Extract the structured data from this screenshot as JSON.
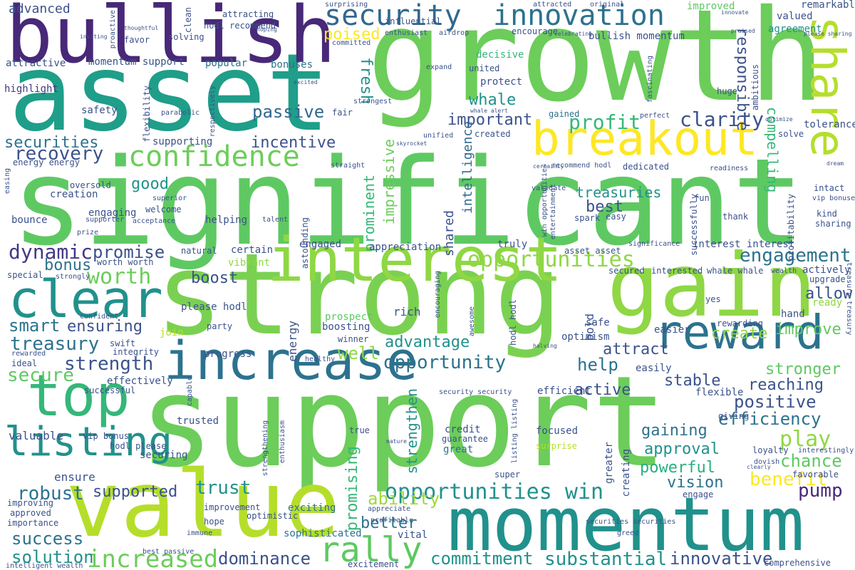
{
  "palette": {
    "background": "#ffffff",
    "c1": "#440154",
    "c2": "#3b528b",
    "c3": "#2c728e",
    "c4": "#21918c",
    "c5": "#28ae80",
    "c6": "#5ec962",
    "c7": "#8fd744",
    "c8": "#b5de2b",
    "c9": "#fde725"
  },
  "words": [
    {
      "text": "growth",
      "color": "#6ccd5a"
    },
    {
      "text": "asset",
      "color": "#1f9e89"
    },
    {
      "text": "significant",
      "color": "#5ec962"
    },
    {
      "text": "support",
      "color": "#6ccd5a"
    },
    {
      "text": "strong",
      "color": "#7ad151"
    },
    {
      "text": "bullish",
      "color": "#482878"
    },
    {
      "text": "value",
      "color": "#b5de2b"
    },
    {
      "text": "momentum",
      "color": "#21918c"
    },
    {
      "text": "gain",
      "color": "#8fd744"
    },
    {
      "text": "increase",
      "color": "#2c728e"
    },
    {
      "text": "interest",
      "color": "#8fd744"
    },
    {
      "text": "top",
      "color": "#35b779"
    },
    {
      "text": "reward",
      "color": "#2c728e"
    },
    {
      "text": "clear",
      "color": "#21918c"
    },
    {
      "text": "breakout",
      "color": "#fde725"
    },
    {
      "text": "share",
      "color": "#b5de2b"
    },
    {
      "text": "security",
      "color": "#31688e"
    },
    {
      "text": "innovation",
      "color": "#2c728e"
    },
    {
      "text": "listing",
      "color": "#21918c"
    },
    {
      "text": "confidence",
      "color": "#6ccd5a"
    },
    {
      "text": "rally",
      "color": "#5ec962"
    },
    {
      "text": "opportunities win",
      "color": "#21918c"
    },
    {
      "text": "increased",
      "color": "#6ccd5a"
    },
    {
      "text": "opportunities",
      "color": "#8fd744"
    },
    {
      "text": "engagement",
      "color": "#2c728e"
    },
    {
      "text": "profit",
      "color": "#35b779"
    },
    {
      "text": "clarity",
      "color": "#3b528b"
    },
    {
      "text": "passive",
      "color": "#31688e"
    },
    {
      "text": "recovery",
      "color": "#3b528b"
    },
    {
      "text": "securities",
      "color": "#2c728e"
    },
    {
      "text": "dynamic",
      "color": "#443983"
    },
    {
      "text": "promise",
      "color": "#3b528b"
    },
    {
      "text": "treasury",
      "color": "#2c728e"
    },
    {
      "text": "strength",
      "color": "#3b528b"
    },
    {
      "text": "robust",
      "color": "#2c728e"
    },
    {
      "text": "success",
      "color": "#2c728e"
    },
    {
      "text": "solution",
      "color": "#21918c"
    },
    {
      "text": "dominance",
      "color": "#3b528b"
    },
    {
      "text": "commitment",
      "color": "#21918c"
    },
    {
      "text": "substantial",
      "color": "#21918c"
    },
    {
      "text": "innovative",
      "color": "#3b528b"
    },
    {
      "text": "advantage",
      "color": "#21918c"
    },
    {
      "text": "opportunity",
      "color": "#2c728e"
    },
    {
      "text": "positive",
      "color": "#3b528b"
    },
    {
      "text": "efficiency",
      "color": "#2c728e"
    },
    {
      "text": "play",
      "color": "#8fd744"
    },
    {
      "text": "approval",
      "color": "#21918c"
    },
    {
      "text": "powerful",
      "color": "#28ae80"
    },
    {
      "text": "vision",
      "color": "#2c728e"
    },
    {
      "text": "benefit",
      "color": "#fde725"
    },
    {
      "text": "chance",
      "color": "#5ec962"
    },
    {
      "text": "pump",
      "color": "#482878"
    },
    {
      "text": "active",
      "color": "#3b528b"
    },
    {
      "text": "stable",
      "color": "#3b528b"
    },
    {
      "text": "reaching",
      "color": "#3b528b"
    },
    {
      "text": "stronger",
      "color": "#5ec962"
    },
    {
      "text": "gaining",
      "color": "#2c728e"
    },
    {
      "text": "trust",
      "color": "#21918c"
    },
    {
      "text": "supported",
      "color": "#3b528b"
    },
    {
      "text": "ability",
      "color": "#a0da39"
    },
    {
      "text": "better",
      "color": "#2c728e"
    },
    {
      "text": "create",
      "color": "#8fd744"
    },
    {
      "text": "improve",
      "color": "#5ec962"
    },
    {
      "text": "allow",
      "color": "#3b528b"
    },
    {
      "text": "secure",
      "color": "#5ec962"
    },
    {
      "text": "smart",
      "color": "#2c728e"
    },
    {
      "text": "ensuring",
      "color": "#3b528b"
    },
    {
      "text": "boost",
      "color": "#3b528b"
    },
    {
      "text": "bonus",
      "color": "#2c728e"
    },
    {
      "text": "worth",
      "color": "#6ccd5a"
    },
    {
      "text": "help",
      "color": "#2c728e"
    },
    {
      "text": "attract",
      "color": "#3b528b"
    },
    {
      "text": "well",
      "color": "#8fd744"
    },
    {
      "text": "best",
      "color": "#3b528b"
    },
    {
      "text": "treasuries",
      "color": "#21918c"
    },
    {
      "text": "incentive",
      "color": "#3b528b"
    },
    {
      "text": "good",
      "color": "#21918c"
    },
    {
      "text": "whale",
      "color": "#21918c"
    },
    {
      "text": "important",
      "color": "#3b528b"
    },
    {
      "text": "poised",
      "color": "#fde725"
    },
    {
      "text": "fresh",
      "color": "#21918c"
    },
    {
      "text": "advanced",
      "color": "#3b528b"
    },
    {
      "text": "attractive",
      "color": "#3b528b"
    },
    {
      "text": "momentum support",
      "color": "#3b528b"
    },
    {
      "text": "highlight",
      "color": "#443983"
    },
    {
      "text": "safety",
      "color": "#3b528b"
    },
    {
      "text": "popular",
      "color": "#2c728e"
    },
    {
      "text": "bonuses",
      "color": "#2c728e"
    },
    {
      "text": "responsible",
      "color": "#3b528b"
    },
    {
      "text": "compelling",
      "color": "#35b779"
    },
    {
      "text": "tolerance",
      "color": "#3b528b"
    },
    {
      "text": "valued",
      "color": "#3b528b"
    },
    {
      "text": "agreement",
      "color": "#21918c"
    },
    {
      "text": "remarkable",
      "color": "#3b528b"
    },
    {
      "text": "improved",
      "color": "#5ec962"
    },
    {
      "text": "bullish momentum",
      "color": "#3b528b"
    },
    {
      "text": "encourage",
      "color": "#3b528b"
    },
    {
      "text": "decisive",
      "color": "#35b779"
    },
    {
      "text": "united",
      "color": "#3b528b"
    },
    {
      "text": "protect",
      "color": "#3b528b"
    },
    {
      "text": "gained",
      "color": "#2c728e"
    },
    {
      "text": "created",
      "color": "#3b528b"
    },
    {
      "text": "prominent",
      "color": "#35b779"
    },
    {
      "text": "impressive",
      "color": "#6ccd5a"
    },
    {
      "text": "intelligence",
      "color": "#31688e"
    },
    {
      "text": "shared",
      "color": "#3b528b"
    },
    {
      "text": "energy",
      "color": "#3b528b"
    },
    {
      "text": "boosting",
      "color": "#3b528b"
    },
    {
      "text": "winner",
      "color": "#3b528b"
    },
    {
      "text": "prospect",
      "color": "#5ec962"
    },
    {
      "text": "rich",
      "color": "#3b528b"
    },
    {
      "text": "strengthen",
      "color": "#21918c"
    },
    {
      "text": "promising",
      "color": "#35b779"
    },
    {
      "text": "credit",
      "color": "#3b528b"
    },
    {
      "text": "great",
      "color": "#2c728e"
    },
    {
      "text": "vital",
      "color": "#3b528b"
    },
    {
      "text": "focused",
      "color": "#3b528b"
    },
    {
      "text": "surprise",
      "color": "#b5de2b"
    },
    {
      "text": "super",
      "color": "#3b528b"
    },
    {
      "text": "excitement",
      "color": "#3b528b"
    },
    {
      "text": "sophisticated",
      "color": "#2c728e"
    },
    {
      "text": "exciting",
      "color": "#2c728e"
    },
    {
      "text": "optimistic",
      "color": "#3b528b"
    },
    {
      "text": "hope",
      "color": "#3b528b"
    },
    {
      "text": "improvement",
      "color": "#3b528b"
    },
    {
      "text": "progress",
      "color": "#3b528b"
    },
    {
      "text": "join",
      "color": "#b5de2b"
    },
    {
      "text": "party",
      "color": "#3b528b"
    },
    {
      "text": "easier",
      "color": "#3b528b"
    },
    {
      "text": "easily",
      "color": "#3b528b"
    },
    {
      "text": "optimism",
      "color": "#3b528b"
    },
    {
      "text": "safe",
      "color": "#3b528b"
    },
    {
      "text": "bold",
      "color": "#3b528b"
    },
    {
      "text": "flexible",
      "color": "#3b528b"
    },
    {
      "text": "efficient",
      "color": "#3b528b"
    },
    {
      "text": "ready",
      "color": "#8fd744"
    },
    {
      "text": "hand",
      "color": "#3b528b"
    },
    {
      "text": "rewarding",
      "color": "#3b528b"
    },
    {
      "text": "upgrade",
      "color": "#3b528b"
    },
    {
      "text": "actively",
      "color": "#3b528b"
    },
    {
      "text": "wealth",
      "color": "#3b528b"
    },
    {
      "text": "whale whale",
      "color": "#3b528b"
    },
    {
      "text": "interested",
      "color": "#3b528b"
    },
    {
      "text": "secured",
      "color": "#3b528b"
    },
    {
      "text": "asset asset",
      "color": "#3b528b"
    },
    {
      "text": "interest interest",
      "color": "#3b528b"
    },
    {
      "text": "appreciation",
      "color": "#3b528b"
    },
    {
      "text": "truly",
      "color": "#3b528b"
    },
    {
      "text": "engaged",
      "color": "#3b528b"
    },
    {
      "text": "certain",
      "color": "#3b528b"
    },
    {
      "text": "natural",
      "color": "#3b528b"
    },
    {
      "text": "vibrant",
      "color": "#8fd744"
    },
    {
      "text": "please hodl",
      "color": "#3b528b"
    },
    {
      "text": "helping",
      "color": "#3b528b"
    },
    {
      "text": "engaging",
      "color": "#3b528b"
    },
    {
      "text": "welcome",
      "color": "#3b528b"
    },
    {
      "text": "creation",
      "color": "#3b528b"
    },
    {
      "text": "bounce",
      "color": "#3b528b"
    },
    {
      "text": "oversold",
      "color": "#3b528b"
    },
    {
      "text": "special",
      "color": "#3b528b"
    },
    {
      "text": "confident",
      "color": "#3b528b"
    },
    {
      "text": "rewarded",
      "color": "#3b528b"
    },
    {
      "text": "ideal",
      "color": "#3b528b"
    },
    {
      "text": "successful",
      "color": "#3b528b"
    },
    {
      "text": "effectively",
      "color": "#3b528b"
    },
    {
      "text": "valuable",
      "color": "#3b528b"
    },
    {
      "text": "vip bonus",
      "color": "#3b528b"
    },
    {
      "text": "hodl please",
      "color": "#3b528b"
    },
    {
      "text": "ensure",
      "color": "#3b528b"
    },
    {
      "text": "approved",
      "color": "#3b528b"
    },
    {
      "text": "importance",
      "color": "#3b528b"
    },
    {
      "text": "improving",
      "color": "#3b528b"
    },
    {
      "text": "securing",
      "color": "#3b528b"
    },
    {
      "text": "trusted",
      "color": "#3b528b"
    },
    {
      "text": "guarantee",
      "color": "#3b528b"
    },
    {
      "text": "true",
      "color": "#3b528b"
    },
    {
      "text": "giving",
      "color": "#3b528b"
    },
    {
      "text": "greater",
      "color": "#3b528b"
    },
    {
      "text": "creating",
      "color": "#3b528b"
    },
    {
      "text": "loyalty",
      "color": "#3b528b"
    },
    {
      "text": "favorable",
      "color": "#3b528b"
    },
    {
      "text": "engage",
      "color": "#3b528b"
    },
    {
      "text": "comprehensive",
      "color": "#3b528b"
    },
    {
      "text": "solve",
      "color": "#3b528b"
    },
    {
      "text": "intact",
      "color": "#3b528b"
    },
    {
      "text": "kind",
      "color": "#3b528b"
    },
    {
      "text": "sharing",
      "color": "#3b528b"
    },
    {
      "text": "thank",
      "color": "#3b528b"
    },
    {
      "text": "fun",
      "color": "#3b528b"
    },
    {
      "text": "spark",
      "color": "#3b528b"
    },
    {
      "text": "easy",
      "color": "#3b528b"
    },
    {
      "text": "dedicated",
      "color": "#3b528b"
    },
    {
      "text": "readiness",
      "color": "#3b528b"
    },
    {
      "text": "recommend hodl",
      "color": "#3b528b"
    },
    {
      "text": "validate",
      "color": "#3b528b"
    },
    {
      "text": "win opportunities",
      "color": "#3b528b"
    },
    {
      "text": "yes",
      "color": "#3b528b"
    },
    {
      "text": "huge",
      "color": "#3b528b"
    },
    {
      "text": "perfect",
      "color": "#3b528b"
    },
    {
      "text": "fair",
      "color": "#3b528b"
    },
    {
      "text": "solving",
      "color": "#3b528b"
    },
    {
      "text": "favor",
      "color": "#3b528b"
    },
    {
      "text": "attracting",
      "color": "#3b528b"
    },
    {
      "text": "attracted",
      "color": "#3b528b"
    },
    {
      "text": "enthusiast",
      "color": "#3b528b"
    },
    {
      "text": "influential",
      "color": "#3b528b"
    },
    {
      "text": "surprising",
      "color": "#3b528b"
    },
    {
      "text": "hodl recommend",
      "color": "#3b528b"
    },
    {
      "text": "clean",
      "color": "#3b528b"
    },
    {
      "text": "proactive",
      "color": "#3b528b"
    },
    {
      "text": "flexibility",
      "color": "#3b528b"
    },
    {
      "text": "supporting",
      "color": "#3b528b"
    },
    {
      "text": "energy energy",
      "color": "#3b528b"
    },
    {
      "text": "easing",
      "color": "#3b528b"
    },
    {
      "text": "strongly",
      "color": "#3b528b"
    },
    {
      "text": "worth worth",
      "color": "#3b528b"
    },
    {
      "text": "acceptance",
      "color": "#3b528b"
    },
    {
      "text": "supporter",
      "color": "#3b528b"
    },
    {
      "text": "prize",
      "color": "#3b528b"
    },
    {
      "text": "talent",
      "color": "#3b528b"
    },
    {
      "text": "astounding",
      "color": "#3b528b"
    },
    {
      "text": "superior",
      "color": "#3b528b"
    },
    {
      "text": "straight",
      "color": "#3b528b"
    },
    {
      "text": "skyrocket",
      "color": "#3b528b"
    },
    {
      "text": "unified",
      "color": "#3b528b"
    },
    {
      "text": "committed",
      "color": "#3b528b"
    },
    {
      "text": "whale alert",
      "color": "#3b528b"
    },
    {
      "text": "strongest",
      "color": "#3b528b"
    },
    {
      "text": "expand",
      "color": "#3b528b"
    },
    {
      "text": "excited",
      "color": "#3b528b"
    },
    {
      "text": "original",
      "color": "#3b528b"
    },
    {
      "text": "certainty",
      "color": "#3b528b"
    },
    {
      "text": "significance",
      "color": "#3b528b"
    },
    {
      "text": "fascinating",
      "color": "#3b528b"
    },
    {
      "text": "ambitious",
      "color": "#3b528b"
    },
    {
      "text": "profitability",
      "color": "#3b528b"
    },
    {
      "text": "successfully",
      "color": "#3b528b"
    },
    {
      "text": "entertainment",
      "color": "#3b528b"
    },
    {
      "text": "hodl hodl",
      "color": "#3b528b"
    },
    {
      "text": "encouraging",
      "color": "#3b528b"
    },
    {
      "text": "awesome",
      "color": "#3b528b"
    },
    {
      "text": "healthy",
      "color": "#3b528b"
    },
    {
      "text": "swift",
      "color": "#3b528b"
    },
    {
      "text": "integrity",
      "color": "#3b528b"
    },
    {
      "text": "parabolic",
      "color": "#3b528b"
    },
    {
      "text": "respectively",
      "color": "#3b528b"
    },
    {
      "text": "listing listing",
      "color": "#3b528b"
    },
    {
      "text": "security security",
      "color": "#3b528b"
    },
    {
      "text": "strengthening",
      "color": "#3b528b"
    },
    {
      "text": "enthusiasm",
      "color": "#3b528b"
    },
    {
      "text": "appreciate",
      "color": "#3b528b"
    },
    {
      "text": "profitable",
      "color": "#3b528b"
    },
    {
      "text": "mature",
      "color": "#3b528b"
    },
    {
      "text": "best passive",
      "color": "#3b528b"
    },
    {
      "text": "intelligent wealth",
      "color": "#3b528b"
    },
    {
      "text": "immune",
      "color": "#3b528b"
    },
    {
      "text": "securities securities",
      "color": "#3b528b"
    },
    {
      "text": "greed",
      "color": "#3b528b"
    },
    {
      "text": "capable",
      "color": "#3b528b"
    },
    {
      "text": "halving",
      "color": "#3b528b"
    },
    {
      "text": "dovish",
      "color": "#3b528b"
    },
    {
      "text": "clearly",
      "color": "#3b528b"
    },
    {
      "text": "interestingly",
      "color": "#3b528b"
    },
    {
      "text": "treasury treasury",
      "color": "#3b528b"
    },
    {
      "text": "vip bonuses",
      "color": "#3b528b"
    },
    {
      "text": "dream",
      "color": "#3b528b"
    },
    {
      "text": "optimize",
      "color": "#3b528b"
    },
    {
      "text": "hoping",
      "color": "#3b528b"
    },
    {
      "text": "innovate",
      "color": "#3b528b"
    },
    {
      "text": "airdrop",
      "color": "#3b528b"
    },
    {
      "text": "thoughtful",
      "color": "#3b528b"
    },
    {
      "text": "inviting",
      "color": "#3b528b"
    },
    {
      "text": "celebrating",
      "color": "#3b528b"
    },
    {
      "text": "please sharing",
      "color": "#3b528b"
    },
    {
      "text": "praised",
      "color": "#3b528b"
    }
  ]
}
